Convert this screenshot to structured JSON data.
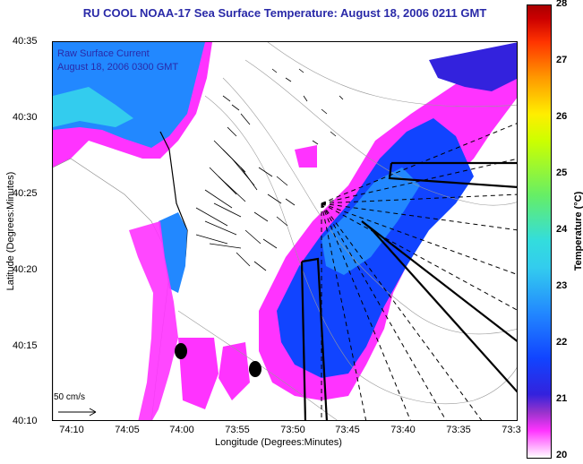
{
  "title": "RU COOL  NOAA-17  Sea Surface Temperature:  August 18, 2006 0211 GMT",
  "overlay": {
    "line1": "Raw Surface Current",
    "line2": "August 18, 2006 0300 GMT"
  },
  "axes": {
    "xlabel": "Longitude (Degrees:Minutes)",
    "ylabel": "Latitude (Degrees:Minutes)",
    "xticks": [
      "74:10",
      "74:05",
      "74:00",
      "73:55",
      "73:50",
      "73:45",
      "73:40",
      "73:35",
      "73:3"
    ],
    "yticks": [
      "40:35",
      "40:30",
      "40:25",
      "40:20",
      "40:15",
      "40:10"
    ]
  },
  "scale": {
    "label": "50 cm/s"
  },
  "colorbar": {
    "title": "Temperature (°C)",
    "ticks": [
      "28",
      "27",
      "26",
      "25",
      "24",
      "23",
      "22",
      "21",
      "20"
    ],
    "range": [
      20,
      28
    ]
  },
  "colors": {
    "title_text": "#2a2aa8",
    "cold_magenta": "#ff33ff",
    "water_blue": "#1144ff",
    "cyan": "#33ccee"
  }
}
